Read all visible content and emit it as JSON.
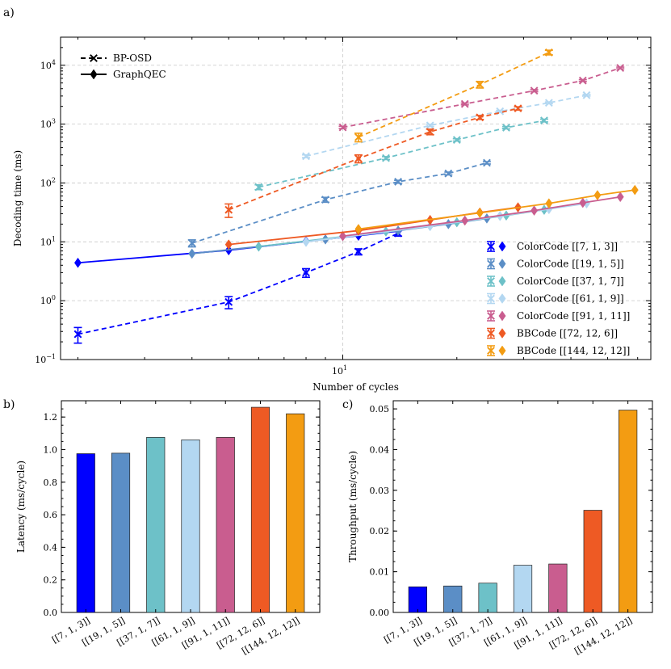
{
  "panel_labels": [
    "a)",
    "b)",
    "c)"
  ],
  "style_legend": {
    "entries": [
      {
        "label": "BP-OSD",
        "line": "dashed",
        "marker": "x"
      },
      {
        "label": "GraphQEC",
        "line": "solid",
        "marker": "diamond"
      }
    ]
  },
  "chart_data": [
    {
      "id": "a",
      "type": "line",
      "title": "",
      "xlabel": "Number of cycles",
      "ylabel": "Decoding time (ms)",
      "xscale": "log",
      "yscale": "log",
      "xlim": [
        1.8,
        65
      ],
      "ylim": [
        0.1,
        30000
      ],
      "x_major_ticks": [
        {
          "value": 10,
          "label": "10",
          "sup": "1"
        }
      ],
      "y_major_ticks": [
        {
          "value": 0.1,
          "label": "10",
          "sup": "−1"
        },
        {
          "value": 1,
          "label": "10",
          "sup": "0"
        },
        {
          "value": 10,
          "label": "10",
          "sup": "1"
        },
        {
          "value": 100,
          "label": "10",
          "sup": "2"
        },
        {
          "value": 1000,
          "label": "10",
          "sup": "3"
        },
        {
          "value": 10000,
          "label": "10",
          "sup": "4"
        }
      ],
      "grid": true,
      "legend_position": "bottom-right",
      "series": [
        {
          "name": "ColorCode [[7, 1, 3]]",
          "color": "#0000ff",
          "bposd": {
            "x": [
              2,
              5,
              8,
              11,
              14
            ],
            "y": [
              0.27,
              0.95,
              3.0,
              6.8,
              14
            ],
            "err": [
              0.08,
              0.22,
              0.5,
              0.8,
              1.5
            ]
          },
          "graphqec": {
            "x": [
              2,
              5,
              8,
              11,
              14
            ],
            "y": [
              4.4,
              7.2,
              10.2,
              12.7,
              15.2
            ]
          }
        },
        {
          "name": "ColorCode [[19, 1, 5]]",
          "color": "#5b8ec6",
          "bposd": {
            "x": [
              4,
              9,
              14,
              19,
              24
            ],
            "y": [
              9.5,
              52,
              105,
              145,
              220
            ],
            "err": [
              1.3,
              5,
              6,
              8,
              10
            ]
          },
          "graphqec": {
            "x": [
              4,
              9,
              14,
              19,
              24
            ],
            "y": [
              6.3,
              11,
              15.5,
              20,
              25
            ]
          }
        },
        {
          "name": "ColorCode [[37, 1, 7]]",
          "color": "#6dc1c8",
          "bposd": {
            "x": [
              6,
              13,
              20,
              27,
              34
            ],
            "y": [
              85,
              265,
              540,
              870,
              1150
            ],
            "err": [
              8,
              15,
              25,
              40,
              60
            ]
          },
          "graphqec": {
            "x": [
              6,
              13,
              20,
              27,
              34
            ],
            "y": [
              8.3,
              15,
              21.5,
              28,
              35
            ]
          }
        },
        {
          "name": "ColorCode [[61, 1, 9]]",
          "color": "#b3d7f1",
          "bposd": {
            "x": [
              8,
              17,
              26,
              35,
              44
            ],
            "y": [
              285,
              950,
              1650,
              2300,
              3100
            ],
            "err": [
              15,
              40,
              60,
              80,
              100
            ]
          },
          "graphqec": {
            "x": [
              8,
              17,
              26,
              35,
              44
            ],
            "y": [
              10,
              18.5,
              27.5,
              36,
              45
            ]
          }
        },
        {
          "name": "ColorCode [[91, 1, 11]]",
          "color": "#c95d8f",
          "bposd": {
            "x": [
              10,
              21,
              32,
              43,
              54
            ],
            "y": [
              880,
              2200,
              3700,
              5500,
              9000
            ],
            "err": [
              40,
              80,
              150,
              200,
              300
            ]
          },
          "graphqec": {
            "x": [
              10,
              21,
              32,
              43,
              54
            ],
            "y": [
              12.5,
              23,
              34,
              46,
              58
            ]
          }
        },
        {
          "name": "BBCode [[72, 12, 6]]",
          "color": "#ee5a24",
          "bposd": {
            "x": [
              5,
              11,
              17,
              23,
              29
            ],
            "y": [
              35,
              260,
              740,
              1300,
              1850
            ],
            "err": [
              9,
              40,
              80,
              100,
              120
            ]
          },
          "graphqec": {
            "x": [
              5,
              11,
              17,
              23,
              29
            ],
            "y": [
              9,
              15.5,
              23.5,
              31.5,
              38.5
            ]
          }
        },
        {
          "name": "BBCode [[144, 12, 12]]",
          "color": "#f39c12",
          "bposd": {
            "x": [
              11,
              23,
              35
            ],
            "y": [
              600,
              4700,
              16500
            ],
            "err": [
              100,
              600,
              1500
            ]
          },
          "graphqec": {
            "x": [
              11,
              23,
              35,
              47,
              59
            ],
            "y": [
              16.5,
              31,
              45,
              62,
              76
            ]
          }
        }
      ]
    },
    {
      "id": "b",
      "type": "bar",
      "title": "",
      "xlabel": "",
      "ylabel": "Latency (ms/cycle)",
      "ylim": [
        0,
        1.3
      ],
      "y_ticks": [
        0.0,
        0.2,
        0.4,
        0.6,
        0.8,
        1.0,
        1.2
      ],
      "y_tick_labels": [
        "0.0",
        "0.2",
        "0.4",
        "0.6",
        "0.8",
        "1.0",
        "1.2"
      ],
      "categories": [
        "[[7, 1, 3]]",
        "[[19, 1, 5]]",
        "[[37, 1, 7]]",
        "[[61, 1, 9]]",
        "[[91, 1, 11]]",
        "[[72, 12, 6]]",
        "[[144, 12, 12]]"
      ],
      "values": [
        0.975,
        0.978,
        1.075,
        1.06,
        1.075,
        1.26,
        1.22
      ],
      "colors": [
        "#0000ff",
        "#5b8ec6",
        "#6dc1c8",
        "#b3d7f1",
        "#c95d8f",
        "#ee5a24",
        "#f39c12"
      ]
    },
    {
      "id": "c",
      "type": "bar",
      "title": "",
      "xlabel": "",
      "ylabel": "Throughput  (ms/cycle)",
      "ylim": [
        0,
        0.052
      ],
      "y_ticks": [
        0.0,
        0.01,
        0.02,
        0.03,
        0.04,
        0.05
      ],
      "y_tick_labels": [
        "0.00",
        "0.01",
        "0.02",
        "0.03",
        "0.04",
        "0.05"
      ],
      "categories": [
        "[[7, 1, 3]]",
        "[[19, 1, 5]]",
        "[[37, 1, 7]]",
        "[[61, 1, 9]]",
        "[[91, 1, 11]]",
        "[[72, 12, 6]]",
        "[[144, 12, 12]]"
      ],
      "values": [
        0.0063,
        0.0065,
        0.0072,
        0.0116,
        0.0119,
        0.0251,
        0.0497
      ],
      "colors": [
        "#0000ff",
        "#5b8ec6",
        "#6dc1c8",
        "#b3d7f1",
        "#c95d8f",
        "#ee5a24",
        "#f39c12"
      ]
    }
  ]
}
